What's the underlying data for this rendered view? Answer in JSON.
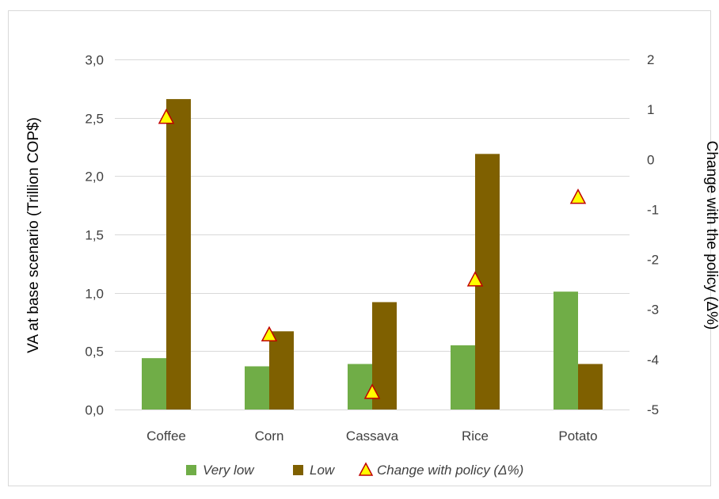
{
  "chart_data": {
    "type": "bar",
    "categories": [
      "Coffee",
      "Corn",
      "Cassava",
      "Rice",
      "Potato"
    ],
    "series": [
      {
        "name": "Very low",
        "axis": "left",
        "kind": "bar",
        "color": "#70AD47",
        "values": [
          0.44,
          0.37,
          0.39,
          0.55,
          1.01
        ]
      },
      {
        "name": "Low",
        "axis": "left",
        "kind": "bar",
        "color": "#7F6000",
        "values": [
          2.66,
          0.67,
          0.92,
          2.19,
          0.39
        ]
      },
      {
        "name": "Change with policy (Δ%)",
        "axis": "right",
        "kind": "marker",
        "marker": "triangle",
        "color": "#FFFF00",
        "edge_color": "#C00000",
        "values": [
          0.85,
          -3.5,
          -4.65,
          -2.4,
          -0.75
        ]
      }
    ],
    "ylabel": "VA at base scenario (Trillion COP$)",
    "ylabel_right": "Change with the policy (Δ%)",
    "ylim": [
      0,
      3
    ],
    "ylim_right": [
      -5,
      2
    ],
    "yticks": [
      "0,0",
      "0,5",
      "1,0",
      "1,5",
      "2,0",
      "2,5",
      "3,0"
    ],
    "yticks_right": [
      "-5",
      "-4",
      "-3",
      "-2",
      "-1",
      "0",
      "1",
      "2"
    ],
    "grid": true,
    "legend": "bottom"
  }
}
